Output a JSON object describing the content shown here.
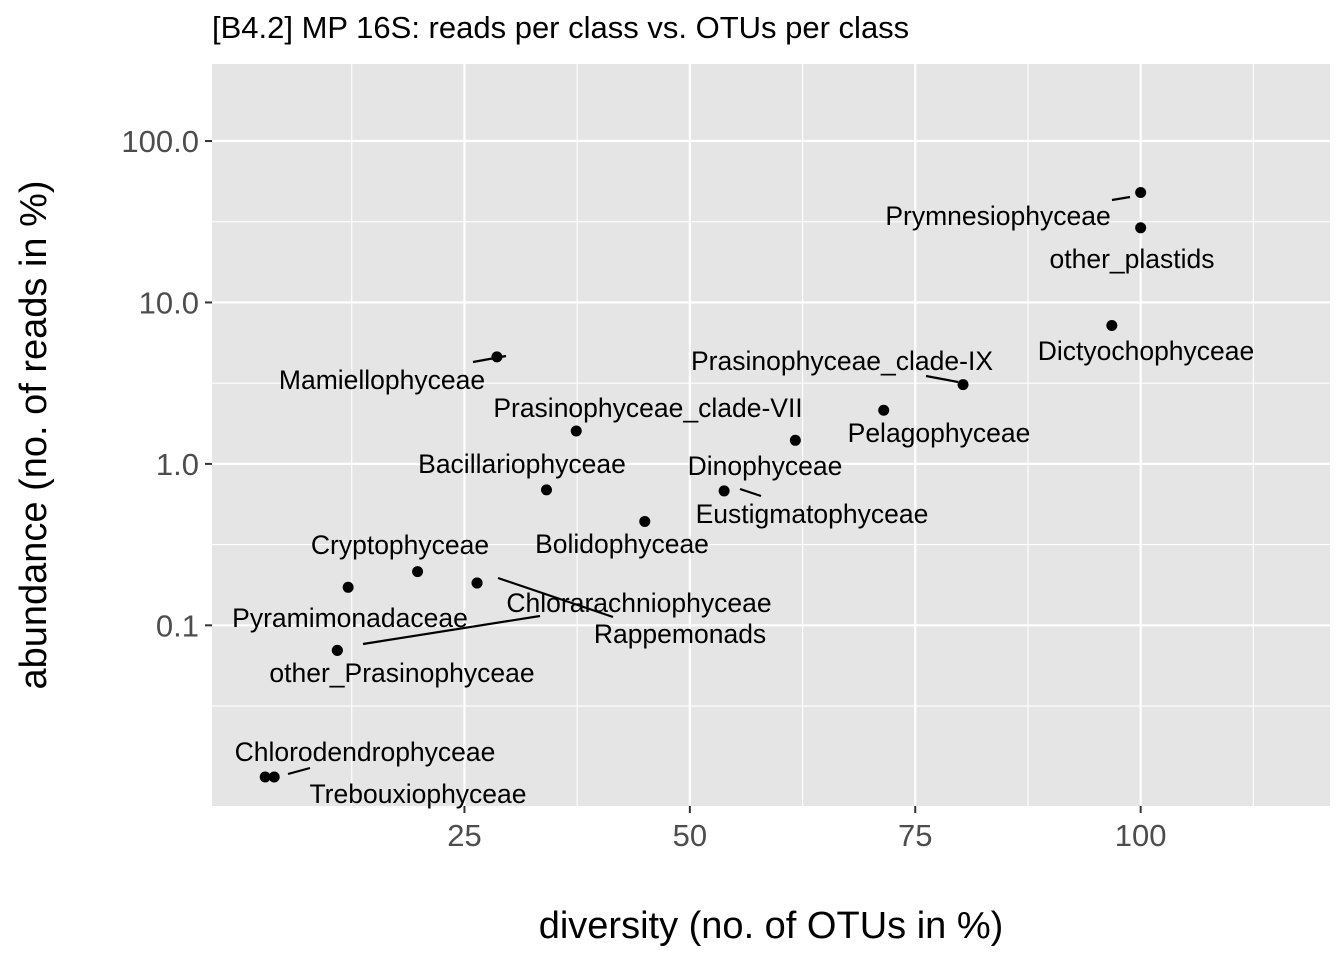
{
  "chart_data": {
    "type": "scatter",
    "title": "[B4.2] MP 16S: reads per class vs. OTUs per class",
    "xlabel": "diversity (no. of OTUs in %)",
    "ylabel": "abundance (no. of reads in %)",
    "x_scale": "linear",
    "y_scale": "log10",
    "xlim": [
      -3,
      121
    ],
    "ylim": [
      0.0076,
      300
    ],
    "x_ticks": [
      25,
      50,
      75,
      100
    ],
    "x_tick_labels": [
      "25",
      "50",
      "75",
      "100"
    ],
    "y_ticks": [
      0.1,
      1,
      10,
      100
    ],
    "y_tick_labels": [
      "0.1",
      "1.0",
      "10.0",
      "100.0"
    ],
    "grid": true,
    "legend": "none",
    "colors": {
      "panel": "#e5e5e5",
      "grid": "#ffffff",
      "point": "#000000",
      "text": "#000000",
      "tick_text": "#4d4d4d"
    },
    "points": [
      {
        "label": "Prymnesiophyceae",
        "x": 100,
        "y": 48
      },
      {
        "label": "other_plastids",
        "x": 100,
        "y": 29
      },
      {
        "label": "Dictyochophyceae",
        "x": 96.8,
        "y": 7.2
      },
      {
        "label": "Prasinophyceae_clade-IX",
        "x": 80.3,
        "y": 3.1
      },
      {
        "label": "Pelagophyceae",
        "x": 61.7,
        "y": 1.4
      },
      {
        "label": "",
        "x": 71.5,
        "y": 2.15
      },
      {
        "label": "Mamiellophyceae",
        "x": 28.6,
        "y": 4.6
      },
      {
        "label": "Prasinophyceae_clade-VII",
        "x": 37.4,
        "y": 1.6
      },
      {
        "label": "Bacillariophyceae",
        "x": 34.1,
        "y": 0.69
      },
      {
        "label": "Dinophyceae",
        "x": 53.8,
        "y": 0.68
      },
      {
        "label": "Eustigmatophyceae",
        "x": 45,
        "y": 0.44
      },
      {
        "label": "Bolidophyceae",
        "x": 19.8,
        "y": 0.215
      },
      {
        "label": "Cryptophyceae",
        "x": 12.1,
        "y": 0.172
      },
      {
        "label": "Chlorarachniophyceae",
        "x": 26.4,
        "y": 0.183
      },
      {
        "label": "Rappemonads",
        "x": 26.4,
        "y": 0.183
      },
      {
        "label": "Pyramimonadaceae",
        "x": 10.9,
        "y": 0.07
      },
      {
        "label": "other_Prasinophyceae",
        "x": 10.9,
        "y": 0.07
      },
      {
        "label": "Chlorodendrophyceae",
        "x": 3.9,
        "y": 0.0115
      },
      {
        "label": "Trebouxiophyceae",
        "x": 2.9,
        "y": 0.0115
      }
    ]
  }
}
